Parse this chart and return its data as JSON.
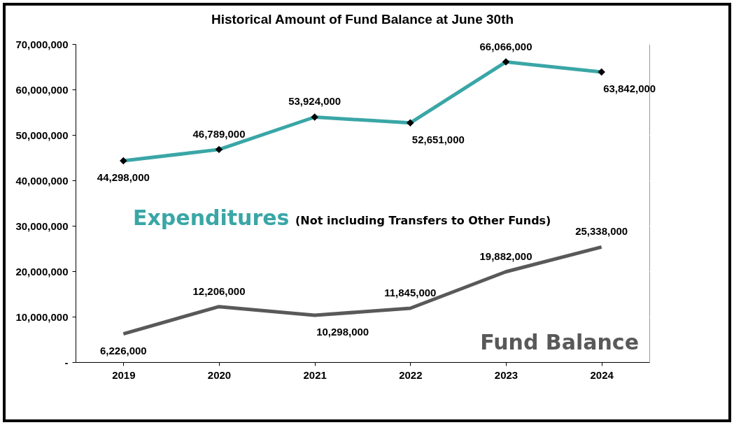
{
  "chart_data": {
    "type": "line",
    "title": "Historical Amount of Fund Balance at June 30th",
    "categories": [
      "2019",
      "2020",
      "2021",
      "2022",
      "2023",
      "2024"
    ],
    "series": [
      {
        "name": "Expenditures",
        "color": "#3aa6a6",
        "marker": "diamond",
        "values": [
          44298000,
          46789000,
          53924000,
          52651000,
          66066000,
          63842000
        ],
        "value_labels": [
          "44,298,000",
          "46,789,000",
          "53,924,000",
          "52,651,000",
          "66,066,000",
          "63,842,000"
        ]
      },
      {
        "name": "Fund Balance",
        "color": "#595959",
        "marker": "none",
        "values": [
          6226000,
          12206000,
          10298000,
          11845000,
          19882000,
          25338000
        ],
        "value_labels": [
          "6,226,000",
          "12,206,000",
          "10,298,000",
          "11,845,000",
          "19,882,000",
          "25,338,000"
        ]
      }
    ],
    "annotations": [
      "(Not including Transfers to Other Funds)"
    ],
    "ylim": [
      0,
      70000000
    ],
    "yticks": [
      {
        "value": 0,
        "label": "-"
      },
      {
        "value": 10000000,
        "label": "10,000,000"
      },
      {
        "value": 20000000,
        "label": "20,000,000"
      },
      {
        "value": 30000000,
        "label": "30,000,000"
      },
      {
        "value": 40000000,
        "label": "40,000,000"
      },
      {
        "value": 50000000,
        "label": "50,000,000"
      },
      {
        "value": 60000000,
        "label": "60,000,000"
      },
      {
        "value": 70000000,
        "label": "70,000,000"
      }
    ],
    "grid": "y"
  }
}
